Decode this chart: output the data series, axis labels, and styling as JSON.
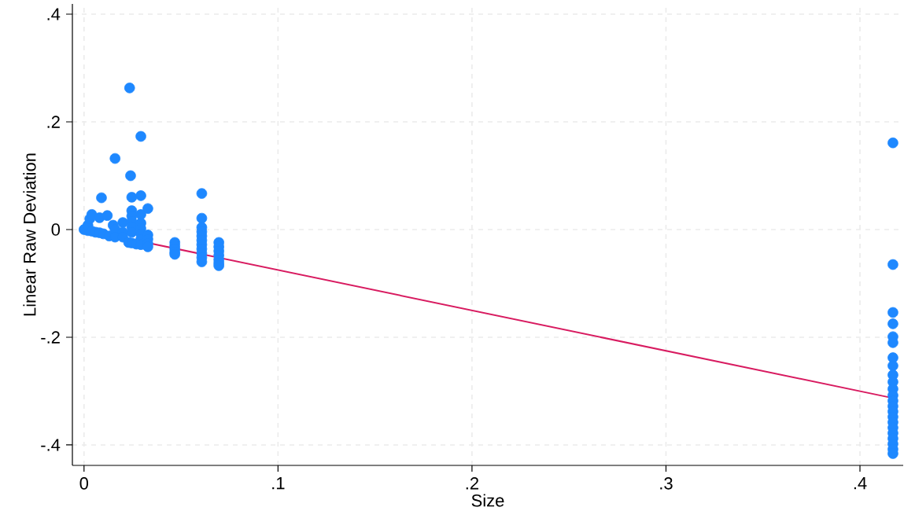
{
  "chart_data": {
    "type": "scatter",
    "xlabel": "Size",
    "ylabel": "Linear Raw Deviation",
    "xlim": [
      -0.006,
      0.4223
    ],
    "ylim": [
      -0.438,
      0.419
    ],
    "xticks": [
      0,
      {
        "value": 0.1,
        "label": ".1"
      },
      {
        "value": 0.2,
        "label": ".2"
      },
      {
        "value": 0.3,
        "label": ".3"
      },
      {
        "value": 0.4,
        "label": ".4"
      }
    ],
    "yticks": [
      {
        "value": -0.4,
        "label": "-.4"
      },
      {
        "value": -0.2,
        "label": "-.2"
      },
      0,
      {
        "value": 0.2,
        "label": ".2"
      },
      {
        "value": 0.4,
        "label": ".4"
      }
    ],
    "grid": true,
    "series": [
      {
        "marker": "circle",
        "color": "#1e88ff",
        "x": [
          0.0,
          0.002,
          0.002,
          0.003,
          0.004,
          0.004,
          0.006,
          0.008,
          0.008,
          0.009,
          0.01,
          0.012,
          0.013,
          0.015,
          0.016,
          0.016,
          0.016,
          0.02,
          0.02,
          0.02,
          0.0235,
          0.023,
          0.024,
          0.0246,
          0.0246,
          0.0246,
          0.0246,
          0.0246,
          0.0246,
          0.0246,
          0.027,
          0.0293,
          0.0293,
          0.0293,
          0.0293,
          0.0293,
          0.0293,
          0.0293,
          0.0293,
          0.0329,
          0.0329,
          0.0329,
          0.0329,
          0.0329,
          0.0468,
          0.0468,
          0.0468,
          0.0468,
          0.0468,
          0.0607,
          0.0607,
          0.0607,
          0.0607,
          0.0607,
          0.0607,
          0.0607,
          0.0607,
          0.0607,
          0.0607,
          0.0607,
          0.0695,
          0.0695,
          0.0695,
          0.0695,
          0.0695,
          0.0695,
          0.0695,
          0.417,
          0.417,
          0.417,
          0.417,
          0.417,
          0.417,
          0.417,
          0.417,
          0.417,
          0.417,
          0.417,
          0.417,
          0.417,
          0.417,
          0.417,
          0.417,
          0.417,
          0.417,
          0.417,
          0.417,
          0.417,
          0.417,
          0.417
        ],
        "values": [
          0.0,
          -0.002,
          0.008,
          0.02,
          0.028,
          -0.003,
          -0.005,
          0.022,
          -0.006,
          0.059,
          -0.008,
          0.026,
          -0.012,
          0.008,
          0.132,
          0.0,
          -0.014,
          0.013,
          -0.005,
          -0.014,
          0.263,
          -0.024,
          0.1,
          0.06,
          0.035,
          0.025,
          0.015,
          0.005,
          -0.005,
          -0.025,
          -0.027,
          0.173,
          0.063,
          0.028,
          0.012,
          0.002,
          -0.008,
          -0.018,
          -0.028,
          0.039,
          -0.01,
          -0.018,
          -0.026,
          -0.032,
          -0.024,
          -0.03,
          -0.036,
          -0.042,
          -0.046,
          0.067,
          0.021,
          0.004,
          -0.004,
          -0.012,
          -0.02,
          -0.028,
          -0.036,
          -0.044,
          -0.052,
          -0.06,
          -0.024,
          -0.032,
          -0.04,
          -0.048,
          -0.056,
          -0.062,
          -0.067,
          0.161,
          -0.065,
          -0.154,
          -0.175,
          -0.199,
          -0.21,
          -0.238,
          -0.253,
          -0.27,
          -0.283,
          -0.296,
          -0.308,
          -0.318,
          -0.328,
          -0.338,
          -0.348,
          -0.358,
          -0.368,
          -0.378,
          -0.388,
          -0.398,
          -0.408,
          -0.416
        ]
      },
      {
        "type": "line",
        "color": "#d81b60",
        "x": [
          0,
          0.417
        ],
        "values": [
          0,
          -0.313
        ]
      }
    ]
  }
}
